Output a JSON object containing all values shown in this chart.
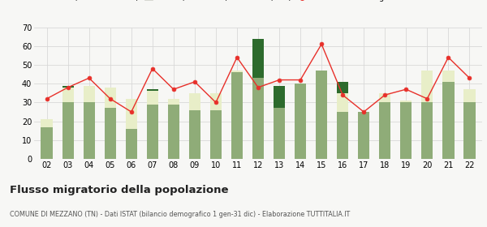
{
  "years": [
    "02",
    "03",
    "04",
    "05",
    "06",
    "07",
    "08",
    "09",
    "10",
    "11",
    "12",
    "13",
    "14",
    "15",
    "16",
    "17",
    "18",
    "19",
    "20",
    "21",
    "22"
  ],
  "iscritti_comuni": [
    17,
    30,
    30,
    27,
    16,
    29,
    29,
    26,
    26,
    46,
    43,
    27,
    40,
    47,
    25,
    25,
    30,
    30,
    30,
    41,
    30
  ],
  "iscritti_estero": [
    4,
    8,
    9,
    11,
    16,
    7,
    3,
    9,
    9,
    1,
    0,
    0,
    0,
    0,
    10,
    0,
    5,
    1,
    17,
    6,
    7
  ],
  "iscritti_altri": [
    0,
    1,
    0,
    0,
    0,
    1,
    0,
    0,
    0,
    0,
    21,
    12,
    0,
    0,
    6,
    0,
    0,
    0,
    0,
    0,
    0
  ],
  "cancellati": [
    32,
    38,
    43,
    32,
    25,
    48,
    37,
    41,
    30,
    54,
    38,
    42,
    42,
    61,
    34,
    25,
    34,
    37,
    32,
    54,
    43
  ],
  "color_comuni": "#8fac78",
  "color_estero": "#e8eec8",
  "color_altri": "#2d6b2d",
  "color_cancellati": "#e8302a",
  "title": "Flusso migratorio della popolazione",
  "subtitle": "COMUNE DI MEZZANO (TN) - Dati ISTAT (bilancio demografico 1 gen-31 dic) - Elaborazione TUTTITALIA.IT",
  "ylim": [
    0,
    70
  ],
  "yticks": [
    0,
    10,
    20,
    30,
    40,
    50,
    60,
    70
  ],
  "bg_color": "#f7f7f5",
  "grid_color": "#d8d8d8"
}
